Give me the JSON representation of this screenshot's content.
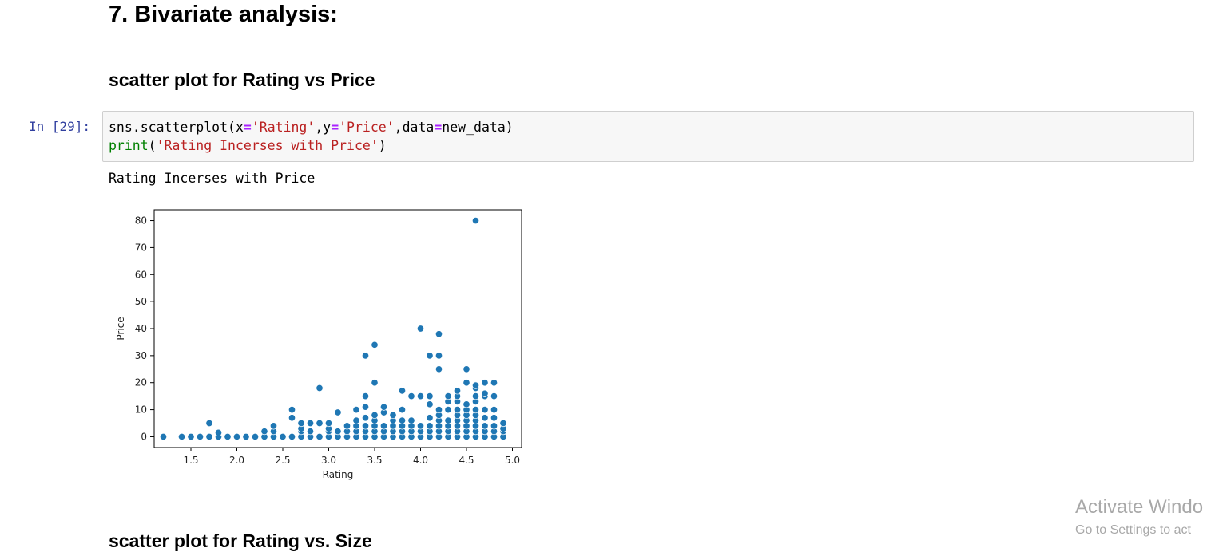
{
  "notebook": {
    "section_heading": "7. Bivariate analysis:",
    "subheading_1": "scatter plot for Rating vs Price",
    "subheading_2": "scatter plot for Rating vs. Size",
    "cell": {
      "prompt": "In [29]:",
      "code_line1": {
        "p1": "sns.scatterplot(x",
        "op1": "=",
        "s1": "'Rating'",
        "p2": ",y",
        "op2": "=",
        "s2": "'Price'",
        "p3": ",data",
        "op3": "=",
        "p4": "new_data)"
      },
      "code_line2": {
        "builtin": "print",
        "p1": "(",
        "s1": "'Rating Incerses with Price'",
        "p2": ")"
      },
      "output_text": "Rating Incerses with Price"
    }
  },
  "chart_data": {
    "type": "scatter",
    "xlabel": "Rating",
    "ylabel": "Price",
    "xlim": [
      1.1,
      5.1
    ],
    "ylim": [
      -4,
      84
    ],
    "xticks": [
      "1.5",
      "2.0",
      "2.5",
      "3.0",
      "3.5",
      "4.0",
      "4.5",
      "5.0"
    ],
    "yticks": [
      "0",
      "10",
      "20",
      "30",
      "40",
      "50",
      "60",
      "70",
      "80"
    ],
    "grid": false,
    "color": "#1f77b4",
    "points": [
      [
        1.2,
        0
      ],
      [
        1.4,
        0
      ],
      [
        1.5,
        0
      ],
      [
        1.6,
        0
      ],
      [
        1.7,
        0
      ],
      [
        1.7,
        5
      ],
      [
        1.8,
        0
      ],
      [
        1.8,
        1.5
      ],
      [
        1.9,
        0
      ],
      [
        2.0,
        0
      ],
      [
        2.1,
        0
      ],
      [
        2.2,
        0
      ],
      [
        2.3,
        0
      ],
      [
        2.3,
        2
      ],
      [
        2.4,
        0
      ],
      [
        2.4,
        2
      ],
      [
        2.4,
        4
      ],
      [
        2.5,
        0
      ],
      [
        2.6,
        0
      ],
      [
        2.6,
        7
      ],
      [
        2.6,
        10
      ],
      [
        2.7,
        0
      ],
      [
        2.7,
        2
      ],
      [
        2.7,
        3
      ],
      [
        2.7,
        5
      ],
      [
        2.8,
        0
      ],
      [
        2.8,
        2
      ],
      [
        2.8,
        5
      ],
      [
        2.9,
        0
      ],
      [
        2.9,
        5
      ],
      [
        2.9,
        18
      ],
      [
        3.0,
        0
      ],
      [
        3.0,
        2
      ],
      [
        3.0,
        3
      ],
      [
        3.0,
        5
      ],
      [
        3.1,
        0
      ],
      [
        3.1,
        2
      ],
      [
        3.1,
        9
      ],
      [
        3.2,
        0
      ],
      [
        3.2,
        2
      ],
      [
        3.2,
        4
      ],
      [
        3.3,
        0
      ],
      [
        3.3,
        2
      ],
      [
        3.3,
        4
      ],
      [
        3.3,
        6
      ],
      [
        3.3,
        10
      ],
      [
        3.4,
        0
      ],
      [
        3.4,
        2
      ],
      [
        3.4,
        4
      ],
      [
        3.4,
        7
      ],
      [
        3.4,
        11
      ],
      [
        3.4,
        15
      ],
      [
        3.4,
        30
      ],
      [
        3.5,
        0
      ],
      [
        3.5,
        2
      ],
      [
        3.5,
        4
      ],
      [
        3.5,
        6
      ],
      [
        3.5,
        8
      ],
      [
        3.5,
        20
      ],
      [
        3.5,
        34
      ],
      [
        3.6,
        0
      ],
      [
        3.6,
        2
      ],
      [
        3.6,
        4
      ],
      [
        3.6,
        9
      ],
      [
        3.6,
        11
      ],
      [
        3.7,
        0
      ],
      [
        3.7,
        2
      ],
      [
        3.7,
        4
      ],
      [
        3.7,
        6
      ],
      [
        3.7,
        8
      ],
      [
        3.8,
        0
      ],
      [
        3.8,
        2
      ],
      [
        3.8,
        4
      ],
      [
        3.8,
        6
      ],
      [
        3.8,
        10
      ],
      [
        3.8,
        17
      ],
      [
        3.9,
        0
      ],
      [
        3.9,
        2
      ],
      [
        3.9,
        4
      ],
      [
        3.9,
        6
      ],
      [
        3.9,
        15
      ],
      [
        4.0,
        0
      ],
      [
        4.0,
        2
      ],
      [
        4.0,
        4
      ],
      [
        4.0,
        15
      ],
      [
        4.0,
        40
      ],
      [
        4.1,
        0
      ],
      [
        4.1,
        2
      ],
      [
        4.1,
        4
      ],
      [
        4.1,
        7
      ],
      [
        4.1,
        12
      ],
      [
        4.1,
        15
      ],
      [
        4.1,
        30
      ],
      [
        4.2,
        0
      ],
      [
        4.2,
        2
      ],
      [
        4.2,
        4
      ],
      [
        4.2,
        6
      ],
      [
        4.2,
        8
      ],
      [
        4.2,
        10
      ],
      [
        4.2,
        25
      ],
      [
        4.2,
        30
      ],
      [
        4.2,
        38
      ],
      [
        4.3,
        0
      ],
      [
        4.3,
        2
      ],
      [
        4.3,
        4
      ],
      [
        4.3,
        6
      ],
      [
        4.3,
        10
      ],
      [
        4.3,
        13
      ],
      [
        4.3,
        15
      ],
      [
        4.4,
        0
      ],
      [
        4.4,
        2
      ],
      [
        4.4,
        4
      ],
      [
        4.4,
        6
      ],
      [
        4.4,
        8
      ],
      [
        4.4,
        10
      ],
      [
        4.4,
        13
      ],
      [
        4.4,
        15
      ],
      [
        4.4,
        17
      ],
      [
        4.5,
        0
      ],
      [
        4.5,
        2
      ],
      [
        4.5,
        4
      ],
      [
        4.5,
        6
      ],
      [
        4.5,
        8
      ],
      [
        4.5,
        10
      ],
      [
        4.5,
        12
      ],
      [
        4.5,
        20
      ],
      [
        4.5,
        25
      ],
      [
        4.6,
        0
      ],
      [
        4.6,
        2
      ],
      [
        4.6,
        4
      ],
      [
        4.6,
        6
      ],
      [
        4.6,
        8
      ],
      [
        4.6,
        10
      ],
      [
        4.6,
        13
      ],
      [
        4.6,
        15
      ],
      [
        4.6,
        18
      ],
      [
        4.6,
        19
      ],
      [
        4.6,
        80
      ],
      [
        4.7,
        0
      ],
      [
        4.7,
        2
      ],
      [
        4.7,
        4
      ],
      [
        4.7,
        7
      ],
      [
        4.7,
        10
      ],
      [
        4.7,
        15
      ],
      [
        4.7,
        16
      ],
      [
        4.7,
        20
      ],
      [
        4.8,
        0
      ],
      [
        4.8,
        2
      ],
      [
        4.8,
        4
      ],
      [
        4.8,
        7
      ],
      [
        4.8,
        10
      ],
      [
        4.8,
        15
      ],
      [
        4.8,
        20
      ],
      [
        4.9,
        0
      ],
      [
        4.9,
        2
      ],
      [
        4.9,
        3
      ],
      [
        4.9,
        5
      ]
    ]
  },
  "watermark": {
    "line1": "Activate Windo",
    "line2": "Go to Settings to act"
  }
}
